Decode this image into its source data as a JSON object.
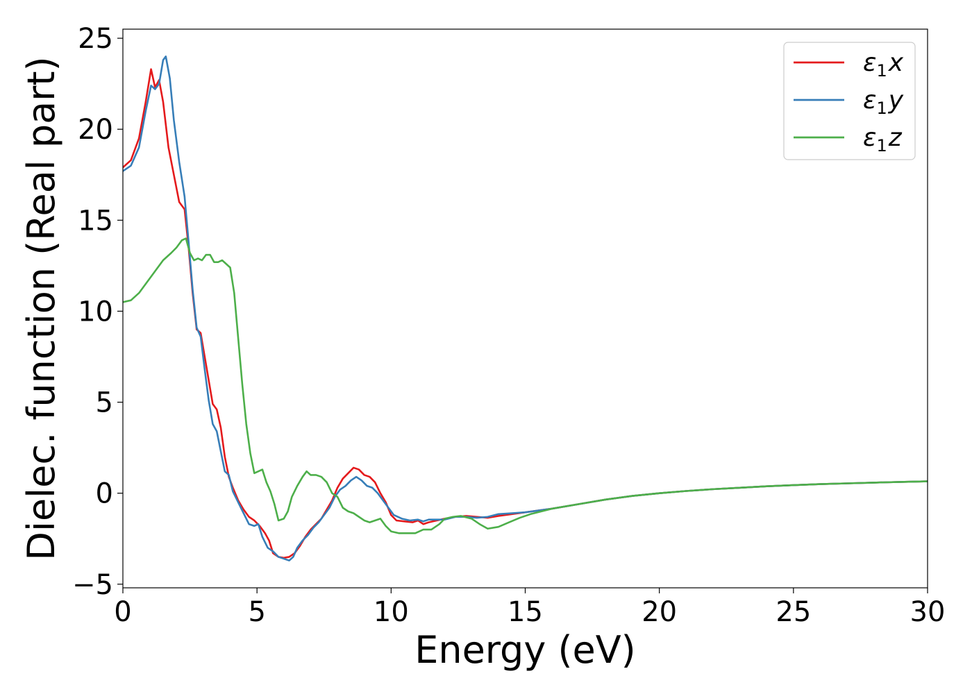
{
  "chart_data": {
    "type": "line",
    "xlabel": "Energy (eV)",
    "ylabel": "Dielec. function (Real part)",
    "xlim": [
      0,
      30
    ],
    "ylim": [
      -5.2,
      25.5
    ],
    "xticks": [
      0,
      5,
      10,
      15,
      20,
      25,
      30
    ],
    "yticks": [
      -5,
      0,
      5,
      10,
      15,
      20,
      25
    ],
    "xtick_labels": [
      "0",
      "5",
      "10",
      "15",
      "20",
      "25",
      "30"
    ],
    "ytick_labels": [
      "−5",
      "0",
      "5",
      "10",
      "15",
      "20",
      "25"
    ],
    "grid": false,
    "legend_position": "top-right",
    "series": [
      {
        "name": "ε1x",
        "legend": {
          "base": "ε",
          "sub": "1",
          "tail": "x"
        },
        "color": "#e41a1c",
        "points": [
          [
            0,
            17.9
          ],
          [
            0.3,
            18.3
          ],
          [
            0.6,
            19.5
          ],
          [
            0.85,
            21.5
          ],
          [
            1.05,
            23.3
          ],
          [
            1.2,
            22.3
          ],
          [
            1.35,
            22.7
          ],
          [
            1.5,
            21.5
          ],
          [
            1.7,
            19.0
          ],
          [
            1.9,
            17.5
          ],
          [
            2.1,
            16.0
          ],
          [
            2.3,
            15.6
          ],
          [
            2.45,
            13.5
          ],
          [
            2.6,
            11.0
          ],
          [
            2.75,
            9.0
          ],
          [
            2.9,
            8.8
          ],
          [
            3.05,
            7.5
          ],
          [
            3.2,
            6.2
          ],
          [
            3.35,
            4.9
          ],
          [
            3.5,
            4.6
          ],
          [
            3.65,
            3.6
          ],
          [
            3.8,
            2.0
          ],
          [
            3.95,
            0.9
          ],
          [
            4.1,
            0.3
          ],
          [
            4.3,
            -0.4
          ],
          [
            4.5,
            -0.9
          ],
          [
            4.7,
            -1.3
          ],
          [
            4.9,
            -1.5
          ],
          [
            5.1,
            -1.8
          ],
          [
            5.3,
            -2.2
          ],
          [
            5.45,
            -2.6
          ],
          [
            5.6,
            -3.3
          ],
          [
            5.8,
            -3.5
          ],
          [
            6.0,
            -3.55
          ],
          [
            6.2,
            -3.5
          ],
          [
            6.4,
            -3.3
          ],
          [
            6.6,
            -2.9
          ],
          [
            6.8,
            -2.4
          ],
          [
            7.0,
            -2.0
          ],
          [
            7.2,
            -1.7
          ],
          [
            7.4,
            -1.4
          ],
          [
            7.6,
            -0.9
          ],
          [
            7.8,
            -0.4
          ],
          [
            8.0,
            0.3
          ],
          [
            8.2,
            0.8
          ],
          [
            8.4,
            1.1
          ],
          [
            8.6,
            1.4
          ],
          [
            8.8,
            1.3
          ],
          [
            9.0,
            1.0
          ],
          [
            9.2,
            0.9
          ],
          [
            9.4,
            0.6
          ],
          [
            9.6,
            0.0
          ],
          [
            9.8,
            -0.5
          ],
          [
            10.0,
            -1.2
          ],
          [
            10.2,
            -1.5
          ],
          [
            10.5,
            -1.55
          ],
          [
            10.8,
            -1.6
          ],
          [
            11.0,
            -1.5
          ],
          [
            11.2,
            -1.7
          ],
          [
            11.4,
            -1.6
          ],
          [
            11.7,
            -1.5
          ],
          [
            12.0,
            -1.4
          ],
          [
            12.4,
            -1.3
          ],
          [
            12.8,
            -1.25
          ],
          [
            13.2,
            -1.3
          ],
          [
            13.6,
            -1.35
          ],
          [
            14.0,
            -1.25
          ],
          [
            14.5,
            -1.15
          ],
          [
            15.0,
            -1.05
          ],
          [
            15.5,
            -0.95
          ],
          [
            16.0,
            -0.85
          ],
          [
            17,
            -0.6
          ],
          [
            18,
            -0.35
          ],
          [
            19,
            -0.15
          ],
          [
            20,
            0.0
          ],
          [
            21,
            0.12
          ],
          [
            22,
            0.22
          ],
          [
            23,
            0.3
          ],
          [
            24,
            0.38
          ],
          [
            25,
            0.44
          ],
          [
            26,
            0.5
          ],
          [
            27,
            0.54
          ],
          [
            28,
            0.58
          ],
          [
            29,
            0.62
          ],
          [
            30,
            0.65
          ]
        ]
      },
      {
        "name": "ε1y",
        "legend": {
          "base": "ε",
          "sub": "1",
          "tail": "y"
        },
        "color": "#377eb8",
        "points": [
          [
            0,
            17.7
          ],
          [
            0.3,
            18.0
          ],
          [
            0.6,
            19.0
          ],
          [
            0.85,
            21.0
          ],
          [
            1.05,
            22.4
          ],
          [
            1.2,
            22.2
          ],
          [
            1.35,
            22.5
          ],
          [
            1.5,
            23.8
          ],
          [
            1.6,
            24.0
          ],
          [
            1.75,
            22.8
          ],
          [
            1.9,
            20.5
          ],
          [
            2.1,
            18.2
          ],
          [
            2.3,
            16.3
          ],
          [
            2.45,
            13.8
          ],
          [
            2.6,
            11.2
          ],
          [
            2.75,
            9.1
          ],
          [
            2.9,
            8.6
          ],
          [
            3.05,
            6.8
          ],
          [
            3.2,
            5.1
          ],
          [
            3.35,
            3.8
          ],
          [
            3.5,
            3.4
          ],
          [
            3.65,
            2.3
          ],
          [
            3.8,
            1.2
          ],
          [
            3.95,
            1.0
          ],
          [
            4.1,
            0.1
          ],
          [
            4.3,
            -0.5
          ],
          [
            4.5,
            -1.1
          ],
          [
            4.7,
            -1.7
          ],
          [
            4.9,
            -1.8
          ],
          [
            5.05,
            -1.7
          ],
          [
            5.2,
            -2.4
          ],
          [
            5.4,
            -3.0
          ],
          [
            5.6,
            -3.2
          ],
          [
            5.8,
            -3.5
          ],
          [
            6.0,
            -3.6
          ],
          [
            6.2,
            -3.7
          ],
          [
            6.35,
            -3.5
          ],
          [
            6.5,
            -3.0
          ],
          [
            6.7,
            -2.6
          ],
          [
            6.9,
            -2.3
          ],
          [
            7.1,
            -1.9
          ],
          [
            7.3,
            -1.6
          ],
          [
            7.5,
            -1.2
          ],
          [
            7.7,
            -0.8
          ],
          [
            7.9,
            -0.2
          ],
          [
            8.1,
            0.2
          ],
          [
            8.3,
            0.4
          ],
          [
            8.5,
            0.7
          ],
          [
            8.7,
            0.9
          ],
          [
            8.9,
            0.7
          ],
          [
            9.1,
            0.4
          ],
          [
            9.3,
            0.3
          ],
          [
            9.5,
            0.0
          ],
          [
            9.7,
            -0.4
          ],
          [
            9.9,
            -0.8
          ],
          [
            10.1,
            -1.2
          ],
          [
            10.4,
            -1.4
          ],
          [
            10.7,
            -1.5
          ],
          [
            11.0,
            -1.45
          ],
          [
            11.2,
            -1.55
          ],
          [
            11.4,
            -1.45
          ],
          [
            11.7,
            -1.45
          ],
          [
            12.0,
            -1.45
          ],
          [
            12.4,
            -1.3
          ],
          [
            12.8,
            -1.3
          ],
          [
            13.2,
            -1.35
          ],
          [
            13.6,
            -1.3
          ],
          [
            14.0,
            -1.15
          ],
          [
            14.5,
            -1.1
          ],
          [
            15.0,
            -1.05
          ],
          [
            15.5,
            -0.95
          ],
          [
            16.0,
            -0.85
          ],
          [
            17,
            -0.6
          ],
          [
            18,
            -0.35
          ],
          [
            19,
            -0.15
          ],
          [
            20,
            0.0
          ],
          [
            21,
            0.12
          ],
          [
            22,
            0.22
          ],
          [
            23,
            0.3
          ],
          [
            24,
            0.38
          ],
          [
            25,
            0.44
          ],
          [
            26,
            0.5
          ],
          [
            27,
            0.54
          ],
          [
            28,
            0.58
          ],
          [
            29,
            0.62
          ],
          [
            30,
            0.65
          ]
        ]
      },
      {
        "name": "ε1z",
        "legend": {
          "base": "ε",
          "sub": "1",
          "tail": "z"
        },
        "color": "#4daf4a",
        "points": [
          [
            0,
            10.5
          ],
          [
            0.3,
            10.6
          ],
          [
            0.6,
            11.0
          ],
          [
            0.9,
            11.6
          ],
          [
            1.2,
            12.2
          ],
          [
            1.5,
            12.8
          ],
          [
            1.8,
            13.2
          ],
          [
            2.0,
            13.5
          ],
          [
            2.2,
            13.9
          ],
          [
            2.35,
            14.0
          ],
          [
            2.5,
            13.2
          ],
          [
            2.65,
            12.8
          ],
          [
            2.8,
            12.9
          ],
          [
            2.95,
            12.8
          ],
          [
            3.1,
            13.1
          ],
          [
            3.25,
            13.1
          ],
          [
            3.4,
            12.7
          ],
          [
            3.55,
            12.7
          ],
          [
            3.7,
            12.8
          ],
          [
            3.85,
            12.6
          ],
          [
            4.0,
            12.4
          ],
          [
            4.15,
            11.0
          ],
          [
            4.3,
            8.5
          ],
          [
            4.45,
            6.0
          ],
          [
            4.6,
            3.8
          ],
          [
            4.75,
            2.2
          ],
          [
            4.9,
            1.1
          ],
          [
            5.05,
            1.2
          ],
          [
            5.2,
            1.3
          ],
          [
            5.35,
            0.6
          ],
          [
            5.5,
            0.1
          ],
          [
            5.65,
            -0.6
          ],
          [
            5.8,
            -1.5
          ],
          [
            6.0,
            -1.4
          ],
          [
            6.15,
            -1.0
          ],
          [
            6.3,
            -0.2
          ],
          [
            6.5,
            0.4
          ],
          [
            6.7,
            0.9
          ],
          [
            6.85,
            1.2
          ],
          [
            7.0,
            1.0
          ],
          [
            7.2,
            1.0
          ],
          [
            7.4,
            0.9
          ],
          [
            7.6,
            0.6
          ],
          [
            7.8,
            0.0
          ],
          [
            8.0,
            -0.2
          ],
          [
            8.2,
            -0.8
          ],
          [
            8.4,
            -1.0
          ],
          [
            8.6,
            -1.1
          ],
          [
            8.8,
            -1.3
          ],
          [
            9.0,
            -1.5
          ],
          [
            9.2,
            -1.6
          ],
          [
            9.4,
            -1.5
          ],
          [
            9.6,
            -1.4
          ],
          [
            9.8,
            -1.8
          ],
          [
            10.0,
            -2.1
          ],
          [
            10.3,
            -2.2
          ],
          [
            10.6,
            -2.2
          ],
          [
            10.9,
            -2.2
          ],
          [
            11.2,
            -2.0
          ],
          [
            11.5,
            -2.0
          ],
          [
            11.8,
            -1.7
          ],
          [
            12.0,
            -1.4
          ],
          [
            12.3,
            -1.3
          ],
          [
            12.6,
            -1.25
          ],
          [
            13.0,
            -1.4
          ],
          [
            13.3,
            -1.7
          ],
          [
            13.6,
            -1.95
          ],
          [
            14.0,
            -1.85
          ],
          [
            14.4,
            -1.6
          ],
          [
            14.8,
            -1.35
          ],
          [
            15.2,
            -1.15
          ],
          [
            15.6,
            -1.0
          ],
          [
            16.0,
            -0.85
          ],
          [
            17,
            -0.6
          ],
          [
            18,
            -0.35
          ],
          [
            19,
            -0.15
          ],
          [
            20,
            0.0
          ],
          [
            21,
            0.12
          ],
          [
            22,
            0.22
          ],
          [
            23,
            0.3
          ],
          [
            24,
            0.38
          ],
          [
            25,
            0.44
          ],
          [
            26,
            0.5
          ],
          [
            27,
            0.54
          ],
          [
            28,
            0.58
          ],
          [
            29,
            0.62
          ],
          [
            30,
            0.65
          ]
        ]
      }
    ]
  }
}
